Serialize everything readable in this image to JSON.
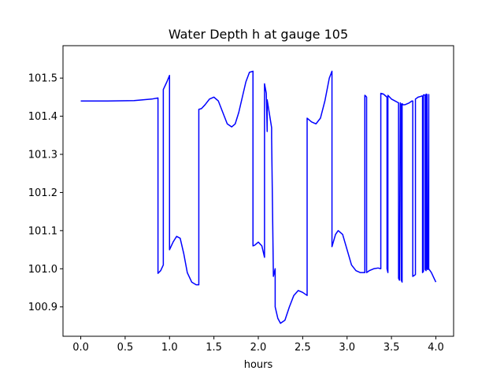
{
  "chart_data": {
    "type": "line",
    "title": "Water Depth h at gauge 105",
    "xlabel": "hours",
    "ylabel": "",
    "xlim": [
      -0.2,
      4.2
    ],
    "ylim": [
      100.823,
      101.585
    ],
    "xticks": [
      "0.0",
      "0.5",
      "1.0",
      "1.5",
      "2.0",
      "2.5",
      "3.0",
      "3.5",
      "4.0"
    ],
    "yticks": [
      "100.9",
      "101.0",
      "101.1",
      "101.2",
      "101.3",
      "101.4",
      "101.5"
    ],
    "grid": false,
    "series": [
      {
        "color": "#0000ff",
        "x": [
          0.0,
          0.3,
          0.6,
          0.8,
          0.87,
          0.87,
          0.9,
          0.93,
          0.93,
          0.97,
          1.0,
          1.0,
          1.04,
          1.08,
          1.12,
          1.16,
          1.2,
          1.25,
          1.3,
          1.33,
          1.33,
          1.36,
          1.4,
          1.45,
          1.5,
          1.55,
          1.6,
          1.65,
          1.7,
          1.74,
          1.78,
          1.82,
          1.86,
          1.9,
          1.94,
          1.94,
          1.96,
          2.0,
          2.04,
          2.07,
          2.07,
          2.09,
          2.1,
          2.1,
          2.15,
          2.15,
          2.17,
          2.19,
          2.19,
          2.22,
          2.25,
          2.3,
          2.35,
          2.4,
          2.45,
          2.5,
          2.55,
          2.55,
          2.6,
          2.65,
          2.7,
          2.75,
          2.8,
          2.83,
          2.83,
          2.87,
          2.9,
          2.95,
          3.0,
          3.05,
          3.1,
          3.15,
          3.2,
          3.2,
          3.21,
          3.22,
          3.22,
          3.25,
          3.3,
          3.35,
          3.38,
          3.38,
          3.41,
          3.45,
          3.45,
          3.46,
          3.46,
          3.5,
          3.54,
          3.58,
          3.58,
          3.59,
          3.6,
          3.61,
          3.61,
          3.62,
          3.62,
          3.63,
          3.64,
          3.65,
          3.65,
          3.7,
          3.73,
          3.74,
          3.74,
          3.76,
          3.77,
          3.77,
          3.8,
          3.83,
          3.84,
          3.85,
          3.85,
          3.86,
          3.86,
          3.87,
          3.88,
          3.88,
          3.89,
          3.89,
          3.9,
          3.9,
          3.91,
          3.92,
          3.92,
          3.95,
          3.98,
          4.0
        ],
        "y": [
          101.44,
          101.44,
          101.441,
          101.445,
          101.448,
          100.988,
          100.995,
          101.01,
          101.47,
          101.49,
          101.507,
          101.05,
          101.07,
          101.085,
          101.08,
          101.04,
          100.99,
          100.965,
          100.958,
          100.958,
          101.418,
          101.42,
          101.43,
          101.445,
          101.45,
          101.44,
          101.41,
          101.38,
          101.372,
          101.38,
          101.41,
          101.45,
          101.49,
          101.515,
          101.518,
          101.06,
          101.062,
          101.07,
          101.06,
          101.03,
          101.485,
          101.46,
          101.36,
          101.443,
          101.37,
          101.345,
          100.98,
          101.0,
          100.9,
          100.87,
          100.857,
          100.865,
          100.9,
          100.93,
          100.943,
          100.938,
          100.93,
          101.395,
          101.385,
          101.38,
          101.395,
          101.44,
          101.5,
          101.518,
          101.058,
          101.09,
          101.1,
          101.09,
          101.05,
          101.01,
          100.995,
          100.99,
          100.99,
          101.455,
          101.453,
          101.45,
          100.99,
          100.995,
          101.0,
          101.002,
          101.0,
          101.46,
          101.458,
          101.45,
          101.0,
          100.99,
          101.455,
          101.445,
          101.44,
          101.435,
          100.975,
          100.97,
          101.435,
          101.43,
          100.97,
          100.965,
          101.433,
          101.43,
          101.43,
          101.43,
          101.43,
          101.435,
          101.44,
          101.44,
          100.98,
          100.983,
          100.985,
          101.445,
          101.45,
          101.452,
          101.453,
          101.453,
          100.99,
          100.993,
          101.456,
          101.456,
          101.455,
          100.998,
          100.995,
          101.458,
          101.457,
          101.0,
          100.998,
          101.457,
          101.0,
          100.99,
          100.975,
          100.965
        ]
      }
    ]
  }
}
